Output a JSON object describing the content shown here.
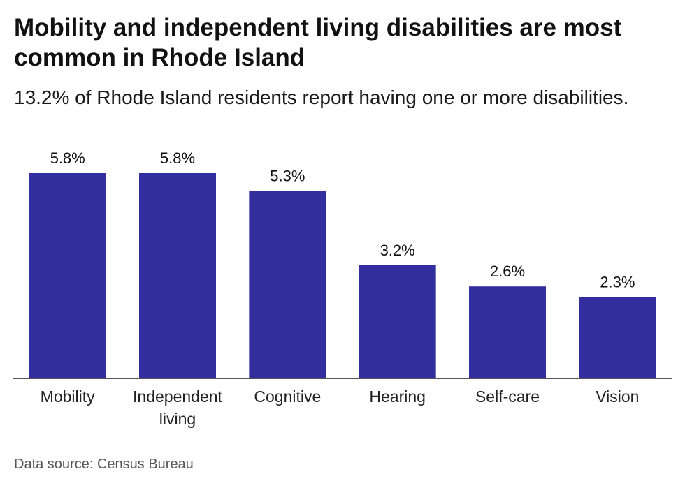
{
  "title": "Mobility and independent living disabilities are most common in Rhode Island",
  "subtitle": "13.2% of Rhode Island residents report having one or more disabilities.",
  "source": "Data source: Census Bureau",
  "colors": {
    "bar": "#332e9e",
    "baseline": "#555555",
    "text": "#111111"
  },
  "chart_data": {
    "type": "bar",
    "title": "Mobility and independent living disabilities are most common in Rhode Island",
    "subtitle": "13.2% of Rhode Island residents report having one or more disabilities.",
    "xlabel": "",
    "ylabel": "",
    "categories": [
      [
        "Mobility"
      ],
      [
        "Independent",
        "living"
      ],
      [
        "Cognitive"
      ],
      [
        "Hearing"
      ],
      [
        "Self-care"
      ],
      [
        "Vision"
      ]
    ],
    "values": [
      5.8,
      5.8,
      5.3,
      3.2,
      2.6,
      2.3
    ],
    "value_labels": [
      "5.8%",
      "5.8%",
      "5.3%",
      "3.2%",
      "2.6%",
      "2.3%"
    ],
    "ylim": [
      0,
      5.8
    ],
    "grid": false,
    "legend": "none"
  }
}
